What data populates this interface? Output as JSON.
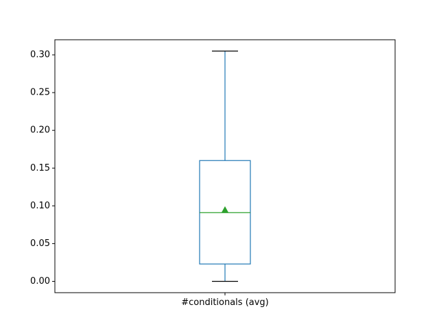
{
  "chart_data": {
    "type": "box",
    "title": "",
    "xlabel": "",
    "ylabel": "",
    "categories": [
      "#conditionals (avg)"
    ],
    "boxes": [
      {
        "name": "#conditionals (avg)",
        "whisker_low": 0.0,
        "q1": 0.023,
        "median": 0.091,
        "q3": 0.16,
        "whisker_high": 0.305,
        "mean": 0.095
      }
    ],
    "yticks": [
      0.0,
      0.05,
      0.1,
      0.15,
      0.2,
      0.25,
      0.3
    ],
    "ytick_labels": [
      "0.00",
      "0.05",
      "0.10",
      "0.15",
      "0.20",
      "0.25",
      "0.30"
    ],
    "ylim": [
      -0.015,
      0.32
    ],
    "grid": false,
    "legend": "none",
    "colors": {
      "box": "#1f77b4",
      "median": "#2ca02c",
      "mean_marker": "#2ca02c",
      "caps": "#000000",
      "axes": "#000000"
    }
  }
}
